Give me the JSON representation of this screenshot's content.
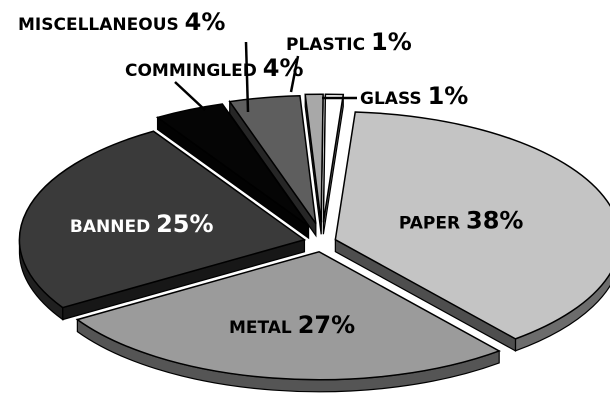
{
  "chart_data": {
    "type": "pie",
    "style": "exploded 3D pie",
    "slices": [
      {
        "name": "PAPER",
        "percent_label": "38%",
        "value": 38,
        "color": "#c4c4c4",
        "text_color": "#000000"
      },
      {
        "name": "METAL",
        "percent_label": "27%",
        "value": 27,
        "color": "#9b9b9b",
        "text_color": "#000000"
      },
      {
        "name": "BANNED",
        "percent_label": "25%",
        "value": 25,
        "color": "#3a3a3a",
        "text_color": "#ffffff"
      },
      {
        "name": "COMMINGLED",
        "percent_label": "4%",
        "value": 4,
        "color": "#050505",
        "text_color": "#000000"
      },
      {
        "name": "MISCELLANEOUS",
        "percent_label": "4%",
        "value": 4,
        "color": "#5e5e5e",
        "text_color": "#000000"
      },
      {
        "name": "PLASTIC",
        "percent_label": "1%",
        "value": 1,
        "color": "#a8a8a8",
        "text_color": "#000000"
      },
      {
        "name": "GLASS",
        "percent_label": "1%",
        "value": 1,
        "color": "#ffffff",
        "text_color": "#000000"
      }
    ]
  }
}
